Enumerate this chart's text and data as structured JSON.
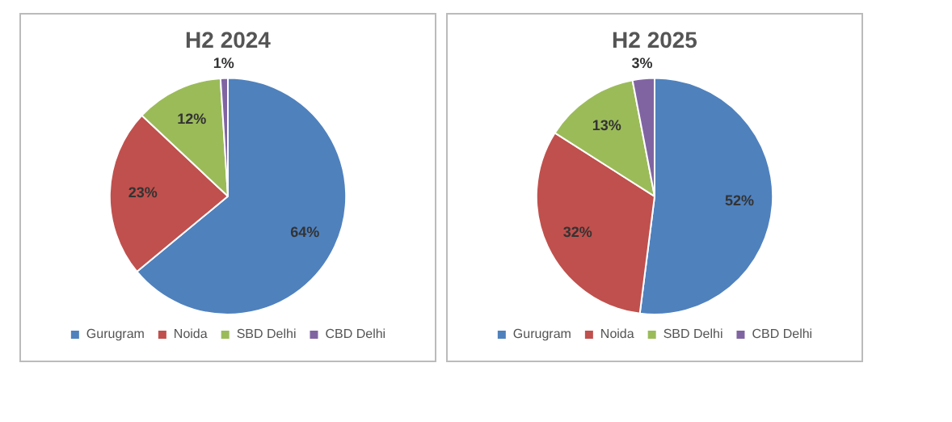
{
  "chart_data": [
    {
      "type": "pie",
      "title": "H2 2024",
      "categories": [
        "Gurugram",
        "Noida",
        "SBD Delhi",
        "CBD Delhi"
      ],
      "values": [
        64,
        23,
        12,
        1
      ],
      "colors": [
        "#4f81bd",
        "#c0504d",
        "#9bbb59",
        "#8064a2"
      ],
      "value_labels": [
        "64%",
        "23%",
        "12%",
        "1%"
      ],
      "legend": "bottom"
    },
    {
      "type": "pie",
      "title": "H2 2025",
      "categories": [
        "Gurugram",
        "Noida",
        "SBD Delhi",
        "CBD Delhi"
      ],
      "values": [
        52,
        32,
        13,
        3
      ],
      "colors": [
        "#4f81bd",
        "#c0504d",
        "#9bbb59",
        "#8064a2"
      ],
      "value_labels": [
        "52%",
        "32%",
        "13%",
        "3%"
      ],
      "legend": "bottom"
    }
  ]
}
